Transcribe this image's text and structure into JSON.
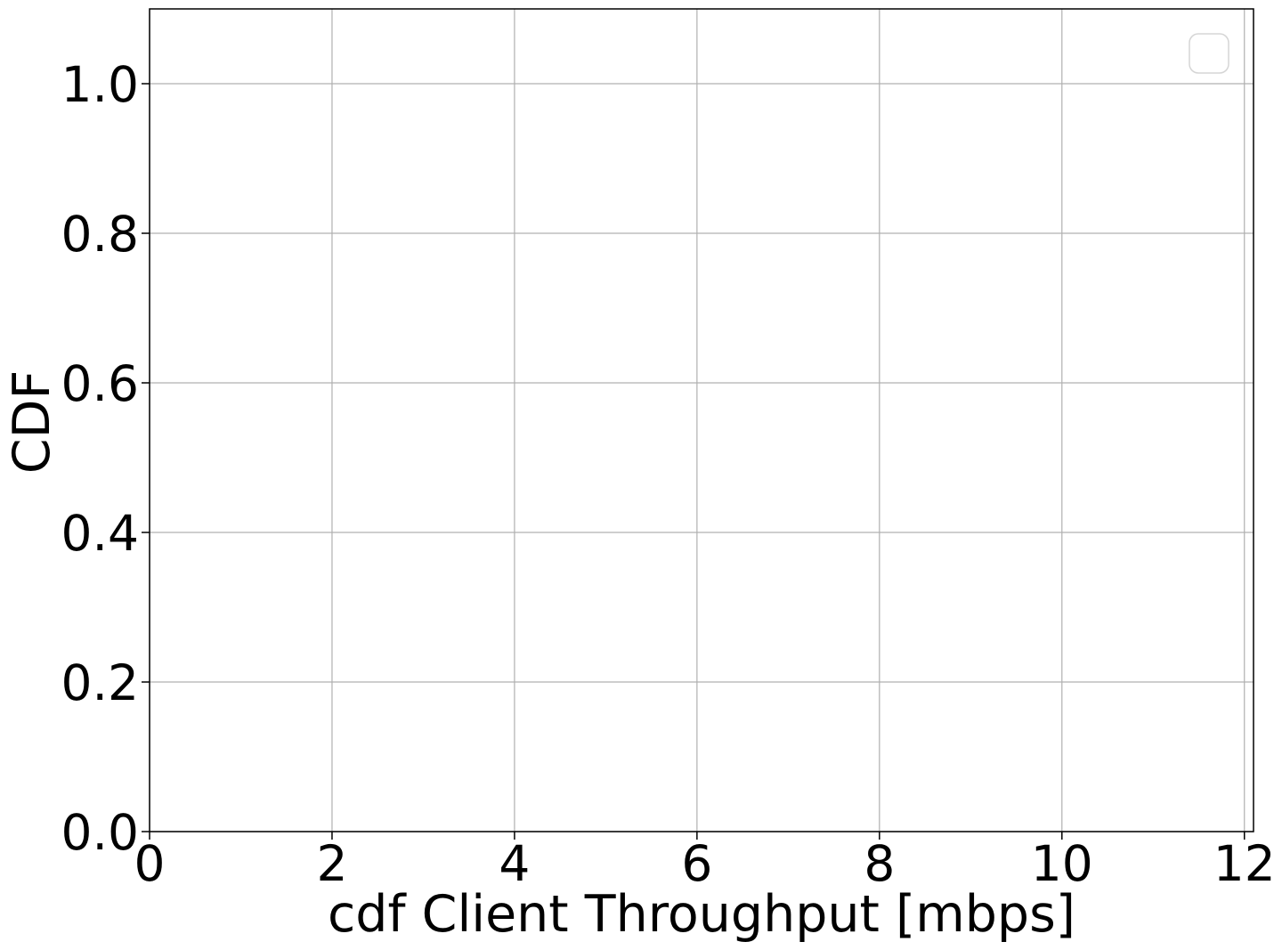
{
  "chart_data": {
    "type": "line",
    "title": "",
    "xlabel": "cdf Client Throughput [mbps]",
    "ylabel": "CDF",
    "xlim": [
      0,
      12.1
    ],
    "ylim": [
      0,
      1.1
    ],
    "x_ticks": [
      0,
      2,
      4,
      6,
      8,
      10,
      12
    ],
    "x_tick_labels": [
      "0",
      "2",
      "4",
      "6",
      "8",
      "10",
      "12"
    ],
    "y_ticks": [
      0.0,
      0.2,
      0.4,
      0.6,
      0.8,
      1.0
    ],
    "y_tick_labels": [
      "0.0",
      "0.2",
      "0.4",
      "0.6",
      "0.8",
      "1.0"
    ],
    "grid": true,
    "legend": {
      "placement": "top-right",
      "entries": []
    },
    "series": []
  }
}
